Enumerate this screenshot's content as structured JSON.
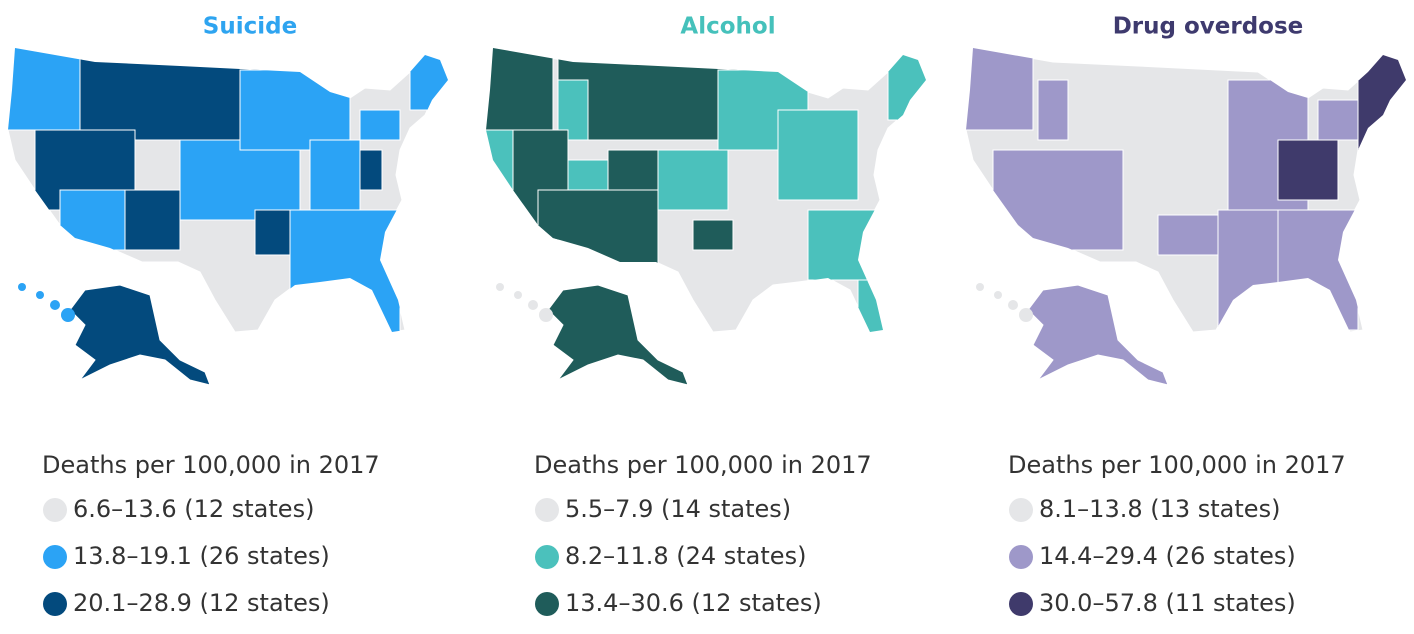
{
  "maps": [
    {
      "title": "Suicide",
      "title_color": "#2ea4f0",
      "legend_title": "Deaths per 100,000 in 2017",
      "legend": [
        {
          "label": "6.6–13.6 (12 states)",
          "color": "#e5e6e8"
        },
        {
          "label": "13.8–19.1 (26 states)",
          "color": "#2ba3f5"
        },
        {
          "label": "20.1–28.9 (12 states)",
          "color": "#034a7d"
        }
      ]
    },
    {
      "title": "Alcohol",
      "title_color": "#45c1bb",
      "legend_title": "Deaths per 100,000 in 2017",
      "legend": [
        {
          "label": "5.5–7.9 (14 states)",
          "color": "#e5e6e8"
        },
        {
          "label": "8.2–11.8 (24 states)",
          "color": "#4bc1bc"
        },
        {
          "label": "13.4–30.6 (12 states)",
          "color": "#1f5c5a"
        }
      ]
    },
    {
      "title": "Drug overdose",
      "title_color": "#3e3a6e",
      "legend_title": "Deaths per 100,000 in 2017",
      "legend": [
        {
          "label": "8.1–13.8 (13 states)",
          "color": "#e5e6e8"
        },
        {
          "label": "14.4–29.4 (26 states)",
          "color": "#9e98c9"
        },
        {
          "label": "30.0–57.8 (11 states)",
          "color": "#3f3a6b"
        }
      ]
    }
  ]
}
